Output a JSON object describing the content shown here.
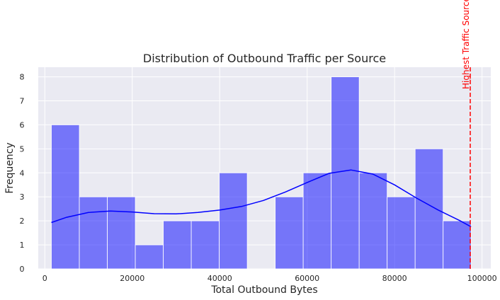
{
  "chart_data": {
    "type": "bar",
    "title": "Distribution of Outbound Traffic per Source",
    "xlabel": "Total Outbound Bytes",
    "ylabel": "Frequency",
    "xlim": [
      -1500,
      102000
    ],
    "ylim": [
      0,
      8.4
    ],
    "xticks": [
      0,
      20000,
      40000,
      60000,
      80000,
      100000
    ],
    "yticks": [
      0,
      1,
      2,
      3,
      4,
      5,
      6,
      7,
      8
    ],
    "grid": true,
    "bins": [
      {
        "x0": 1500,
        "x1": 7900,
        "count": 6
      },
      {
        "x0": 7900,
        "x1": 14300,
        "count": 3
      },
      {
        "x0": 14300,
        "x1": 20700,
        "count": 3
      },
      {
        "x0": 20700,
        "x1": 27100,
        "count": 1
      },
      {
        "x0": 27100,
        "x1": 33500,
        "count": 2
      },
      {
        "x0": 33500,
        "x1": 39900,
        "count": 2
      },
      {
        "x0": 39900,
        "x1": 46300,
        "count": 4
      },
      {
        "x0": 46300,
        "x1": 52700,
        "count": 0
      },
      {
        "x0": 52700,
        "x1": 59100,
        "count": 3
      },
      {
        "x0": 59100,
        "x1": 65500,
        "count": 4
      },
      {
        "x0": 65500,
        "x1": 71900,
        "count": 8
      },
      {
        "x0": 71900,
        "x1": 78300,
        "count": 4
      },
      {
        "x0": 78300,
        "x1": 84700,
        "count": 3
      },
      {
        "x0": 84700,
        "x1": 91100,
        "count": 5
      },
      {
        "x0": 91100,
        "x1": 97500,
        "count": 2
      }
    ],
    "kde": [
      [
        1500,
        1.93
      ],
      [
        5000,
        2.15
      ],
      [
        10000,
        2.35
      ],
      [
        15000,
        2.41
      ],
      [
        20000,
        2.37
      ],
      [
        25000,
        2.3
      ],
      [
        30000,
        2.29
      ],
      [
        35000,
        2.35
      ],
      [
        40000,
        2.45
      ],
      [
        45000,
        2.6
      ],
      [
        50000,
        2.85
      ],
      [
        55000,
        3.2
      ],
      [
        60000,
        3.6
      ],
      [
        65000,
        3.98
      ],
      [
        70000,
        4.12
      ],
      [
        75000,
        3.95
      ],
      [
        80000,
        3.5
      ],
      [
        85000,
        2.95
      ],
      [
        90000,
        2.45
      ],
      [
        95000,
        2.0
      ],
      [
        97500,
        1.75
      ]
    ],
    "marker": {
      "x": 97300,
      "label": "Highest Traffic Source"
    },
    "colors": {
      "bar_fill": "#0000ff",
      "bar_opacity": 0.5,
      "kde_line": "#0000ff",
      "marker": "#ff0000",
      "plot_background": "#eaeaf2",
      "grid": "#ffffff"
    }
  }
}
